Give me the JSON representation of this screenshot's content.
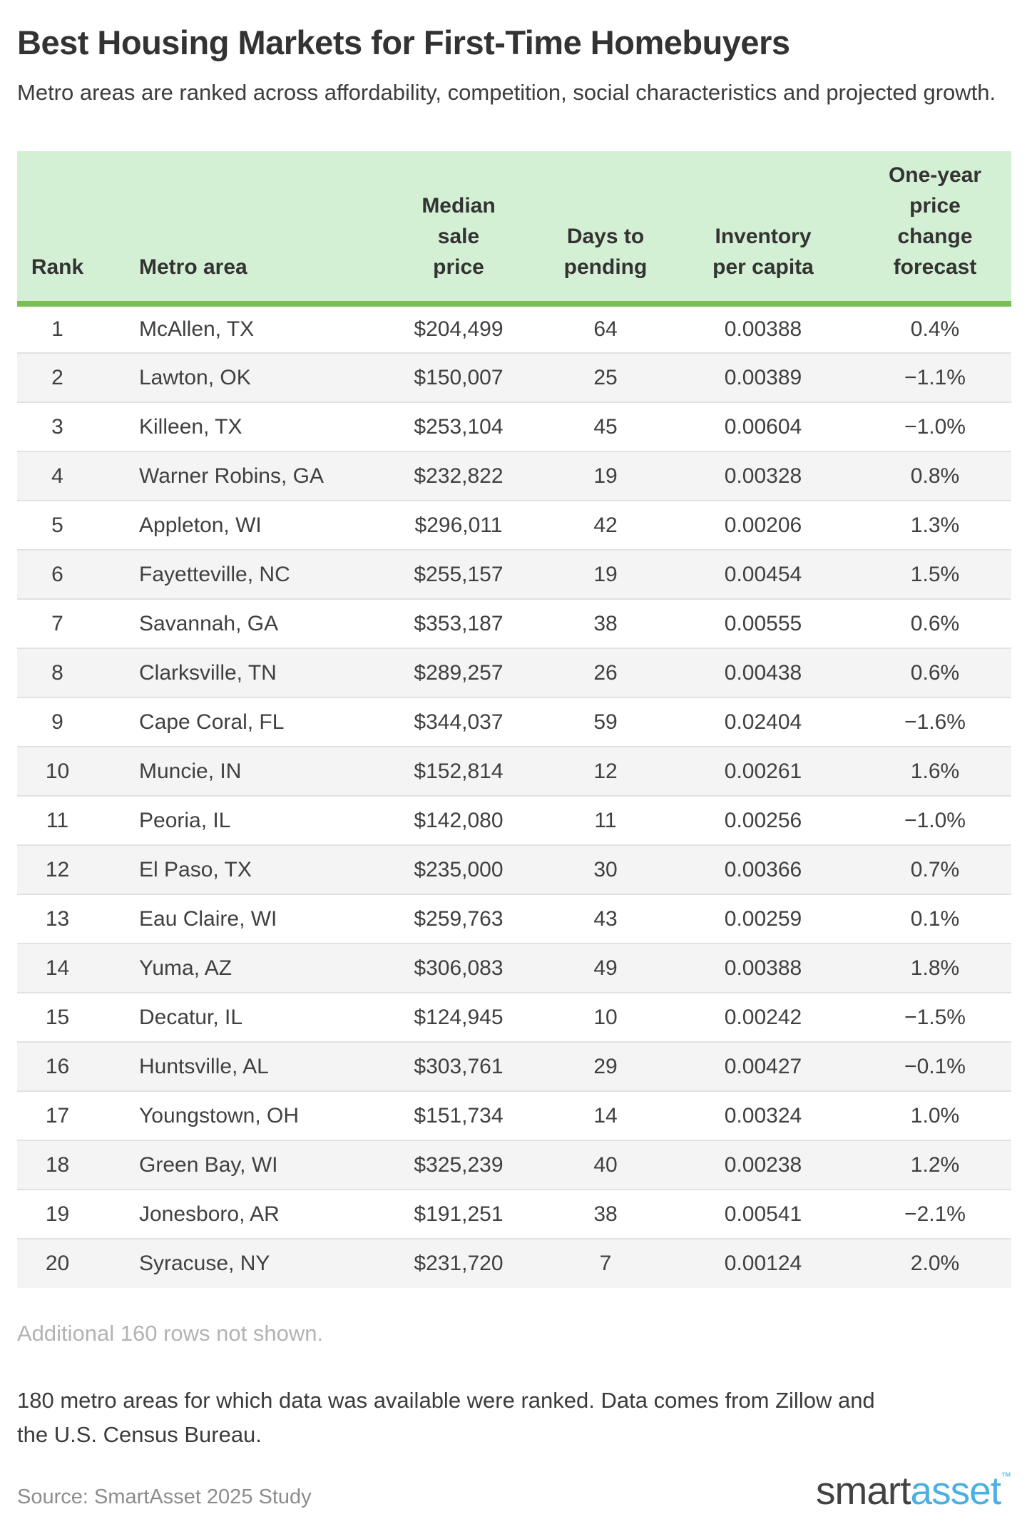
{
  "title": "Best Housing Markets for First-Time Homebuyers",
  "subtitle": "Metro areas are ranked across affordability, competition, social characteristics and projected growth.",
  "chart_data": {
    "type": "table",
    "title": "Best Housing Markets for First-Time Homebuyers",
    "subtitle": "Metro areas are ranked across affordability, competition, social characteristics and projected growth.",
    "columns": [
      "Rank",
      "Metro area",
      "Median sale price",
      "Days to pending",
      "Inventory per capita",
      "One-year price change forecast"
    ],
    "rows": [
      [
        "1",
        "McAllen, TX",
        "$204,499",
        "64",
        "0.00388",
        "0.4%"
      ],
      [
        "2",
        "Lawton, OK",
        "$150,007",
        "25",
        "0.00389",
        "−1.1%"
      ],
      [
        "3",
        "Killeen, TX",
        "$253,104",
        "45",
        "0.00604",
        "−1.0%"
      ],
      [
        "4",
        "Warner Robins, GA",
        "$232,822",
        "19",
        "0.00328",
        "0.8%"
      ],
      [
        "5",
        "Appleton, WI",
        "$296,011",
        "42",
        "0.00206",
        "1.3%"
      ],
      [
        "6",
        "Fayetteville, NC",
        "$255,157",
        "19",
        "0.00454",
        "1.5%"
      ],
      [
        "7",
        "Savannah, GA",
        "$353,187",
        "38",
        "0.00555",
        "0.6%"
      ],
      [
        "8",
        "Clarksville, TN",
        "$289,257",
        "26",
        "0.00438",
        "0.6%"
      ],
      [
        "9",
        "Cape Coral, FL",
        "$344,037",
        "59",
        "0.02404",
        "−1.6%"
      ],
      [
        "10",
        "Muncie, IN",
        "$152,814",
        "12",
        "0.00261",
        "1.6%"
      ],
      [
        "11",
        "Peoria, IL",
        "$142,080",
        "11",
        "0.00256",
        "−1.0%"
      ],
      [
        "12",
        "El Paso, TX",
        "$235,000",
        "30",
        "0.00366",
        "0.7%"
      ],
      [
        "13",
        "Eau Claire, WI",
        "$259,763",
        "43",
        "0.00259",
        "0.1%"
      ],
      [
        "14",
        "Yuma, AZ",
        "$306,083",
        "49",
        "0.00388",
        "1.8%"
      ],
      [
        "15",
        "Decatur, IL",
        "$124,945",
        "10",
        "0.00242",
        "−1.5%"
      ],
      [
        "16",
        "Huntsville, AL",
        "$303,761",
        "29",
        "0.00427",
        "−0.1%"
      ],
      [
        "17",
        "Youngstown, OH",
        "$151,734",
        "14",
        "0.00324",
        "1.0%"
      ],
      [
        "18",
        "Green Bay, WI",
        "$325,239",
        "40",
        "0.00238",
        "1.2%"
      ],
      [
        "19",
        "Jonesboro, AR",
        "$191,251",
        "38",
        "0.00541",
        "−2.1%"
      ],
      [
        "20",
        "Syracuse, NY",
        "$231,720",
        "7",
        "0.00124",
        "2.0%"
      ]
    ]
  },
  "table": {
    "header_display": [
      "Rank",
      "Metro area",
      "Median\nsale\nprice",
      "Days to\npending",
      "Inventory\nper capita",
      "One-year\nprice\nchange\nforecast"
    ]
  },
  "footer": {
    "additional": "Additional 160 rows not shown.",
    "note": "180 metro areas for which data was available were ranked. Data comes from Zillow and the U.S. Census Bureau.",
    "source": "Source: SmartAsset 2025 Study",
    "logo_part1": "smart",
    "logo_part2": "asset",
    "logo_tm": "™"
  },
  "colors": {
    "header_bg": "#d4f0d4",
    "header_border": "#79bf55",
    "row_alt_bg": "#f4f4f4",
    "row_separator": "#e2e2e2",
    "text_dark": "#333333",
    "text_muted": "#b3b3b3",
    "text_source": "#8c8c8c",
    "logo_blue": "#4cafe3"
  }
}
